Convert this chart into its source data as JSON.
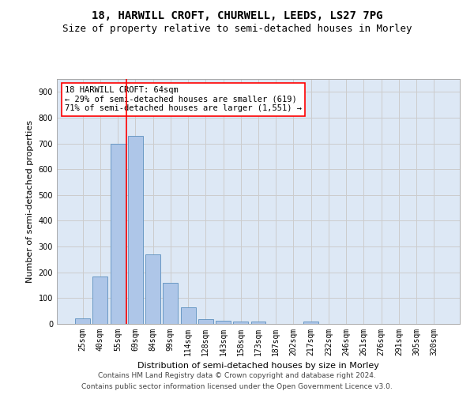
{
  "title1": "18, HARWILL CROFT, CHURWELL, LEEDS, LS27 7PG",
  "title2": "Size of property relative to semi-detached houses in Morley",
  "xlabel": "Distribution of semi-detached houses by size in Morley",
  "ylabel": "Number of semi-detached properties",
  "categories": [
    "25sqm",
    "40sqm",
    "55sqm",
    "69sqm",
    "84sqm",
    "99sqm",
    "114sqm",
    "128sqm",
    "143sqm",
    "158sqm",
    "173sqm",
    "187sqm",
    "202sqm",
    "217sqm",
    "232sqm",
    "246sqm",
    "261sqm",
    "276sqm",
    "291sqm",
    "305sqm",
    "320sqm"
  ],
  "values": [
    20,
    185,
    700,
    730,
    270,
    160,
    65,
    18,
    13,
    10,
    10,
    0,
    0,
    8,
    0,
    0,
    0,
    0,
    0,
    0,
    0
  ],
  "bar_color": "#aec6e8",
  "bar_edge_color": "#5b8fbe",
  "vline_x": 2.5,
  "vline_color": "red",
  "annotation_line1": "18 HARWILL CROFT: 64sqm",
  "annotation_line2": "← 29% of semi-detached houses are smaller (619)",
  "annotation_line3": "71% of semi-detached houses are larger (1,551) →",
  "annotation_box_color": "white",
  "annotation_box_edge_color": "red",
  "ylim": [
    0,
    950
  ],
  "yticks": [
    0,
    100,
    200,
    300,
    400,
    500,
    600,
    700,
    800,
    900
  ],
  "grid_color": "#cccccc",
  "bg_color": "#dde8f5",
  "footer1": "Contains HM Land Registry data © Crown copyright and database right 2024.",
  "footer2": "Contains public sector information licensed under the Open Government Licence v3.0.",
  "title1_fontsize": 10,
  "title2_fontsize": 9,
  "axis_label_fontsize": 8,
  "tick_fontsize": 7,
  "annotation_fontsize": 7.5,
  "footer_fontsize": 6.5
}
